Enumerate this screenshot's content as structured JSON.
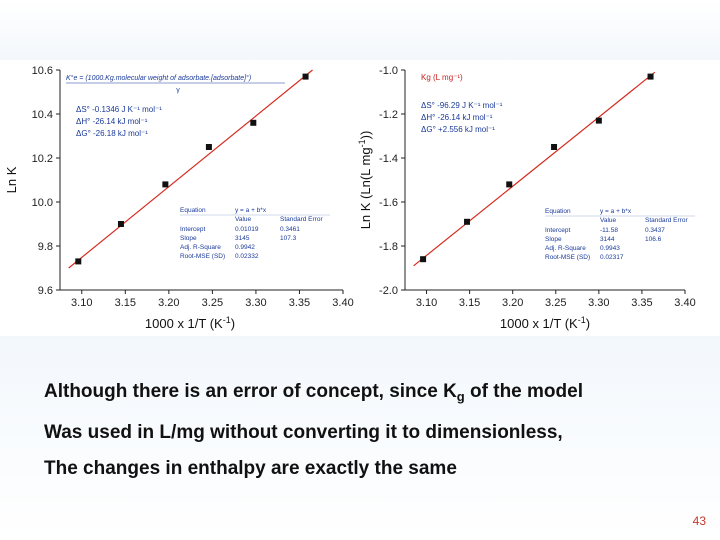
{
  "chart_data": [
    {
      "type": "scatter",
      "xlabel": "1000 x 1/T (K",
      "xlabel_sup": "-1",
      "xlabel_close": ")",
      "ylabel": "Ln K",
      "xlim": [
        3.075,
        3.4
      ],
      "ylim": [
        9.6,
        10.6
      ],
      "x_ticks": [
        "3.10",
        "3.15",
        "3.20",
        "3.25",
        "3.30",
        "3.35",
        "3.40"
      ],
      "y_ticks": [
        "9.6",
        "9.8",
        "10.0",
        "10.2",
        "10.4",
        "10.6"
      ],
      "points": [
        {
          "x": 3.096,
          "y": 9.73
        },
        {
          "x": 3.145,
          "y": 9.9
        },
        {
          "x": 3.196,
          "y": 10.08
        },
        {
          "x": 3.246,
          "y": 10.25
        },
        {
          "x": 3.297,
          "y": 10.36
        },
        {
          "x": 3.357,
          "y": 10.57
        }
      ],
      "fit_line": {
        "x": [
          3.085,
          3.365
        ],
        "y": [
          9.7,
          10.6
        ]
      },
      "marker_color": "#111111",
      "line_color": "#d62b1f",
      "annotations": {
        "formula": "K°e = (1000.Kg.molecular weight of adsorbate.[adsorbate]°)",
        "formula_denominator": "γ",
        "thermo": [
          "ΔS° -0.1346 J K⁻¹ mol⁻¹",
          "ΔH° -26.14 kJ mol⁻¹",
          "ΔG° -26.18 kJ mol⁻¹"
        ],
        "stats": {
          "header": [
            "Equation",
            "y = a + b*x",
            ""
          ],
          "subheader": [
            "",
            "Value",
            "Standard Error"
          ],
          "rows": [
            [
              "Intercept",
              "0.01019",
              "0.3461"
            ],
            [
              "Slope",
              "3145",
              "107.3"
            ],
            [
              "Adj. R-Square",
              "0.9942",
              ""
            ],
            [
              "Root-MSE (SD)",
              "0.02332",
              ""
            ]
          ]
        }
      }
    },
    {
      "type": "scatter",
      "xlabel": "1000 x 1/T (K",
      "xlabel_sup": "-1",
      "xlabel_close": ")",
      "ylabel": "Ln K (Ln(L mg",
      "ylabel_sup": "-1",
      "ylabel_close": "))",
      "xlim": [
        3.075,
        3.4
      ],
      "ylim": [
        -2.0,
        -1.0
      ],
      "x_ticks": [
        "3.10",
        "3.15",
        "3.20",
        "3.25",
        "3.30",
        "3.35",
        "3.40"
      ],
      "y_ticks": [
        "-2.0",
        "-1.8",
        "-1.6",
        "-1.4",
        "-1.2",
        "-1.0"
      ],
      "points": [
        {
          "x": 3.096,
          "y": -1.86
        },
        {
          "x": 3.147,
          "y": -1.69
        },
        {
          "x": 3.196,
          "y": -1.52
        },
        {
          "x": 3.248,
          "y": -1.35
        },
        {
          "x": 3.3,
          "y": -1.23
        },
        {
          "x": 3.36,
          "y": -1.03
        }
      ],
      "fit_line": {
        "x": [
          3.085,
          3.365
        ],
        "y": [
          -1.89,
          -1.01
        ]
      },
      "marker_color": "#111111",
      "line_color": "#d62b1f",
      "annotations": {
        "legend": "Kg (L mg⁻¹)",
        "thermo": [
          "ΔS° -96.29 J K⁻¹ mol⁻¹",
          "ΔH° -26.14 kJ mol⁻¹",
          "ΔG° +2.556 kJ mol⁻¹"
        ],
        "stats": {
          "header": [
            "Equation",
            "y = a + b*x",
            ""
          ],
          "subheader": [
            "",
            "Value",
            "Standard Error"
          ],
          "rows": [
            [
              "Intercept",
              "-11.58",
              "0.3437"
            ],
            [
              "Slope",
              "3144",
              "106.6"
            ],
            [
              "Adj. R-Square",
              "0.9943",
              ""
            ],
            [
              "Root-MSE (SD)",
              "0.02317",
              ""
            ]
          ]
        }
      }
    }
  ],
  "caption": {
    "line1_a": "Although there is an error of concept, since K",
    "line1_sub": "g",
    "line1_b": " of the model",
    "line2": "Was used in L/mg without converting it to dimensionless,",
    "line3": "The changes in enthalpy are exactly the same"
  },
  "page_number": "43"
}
